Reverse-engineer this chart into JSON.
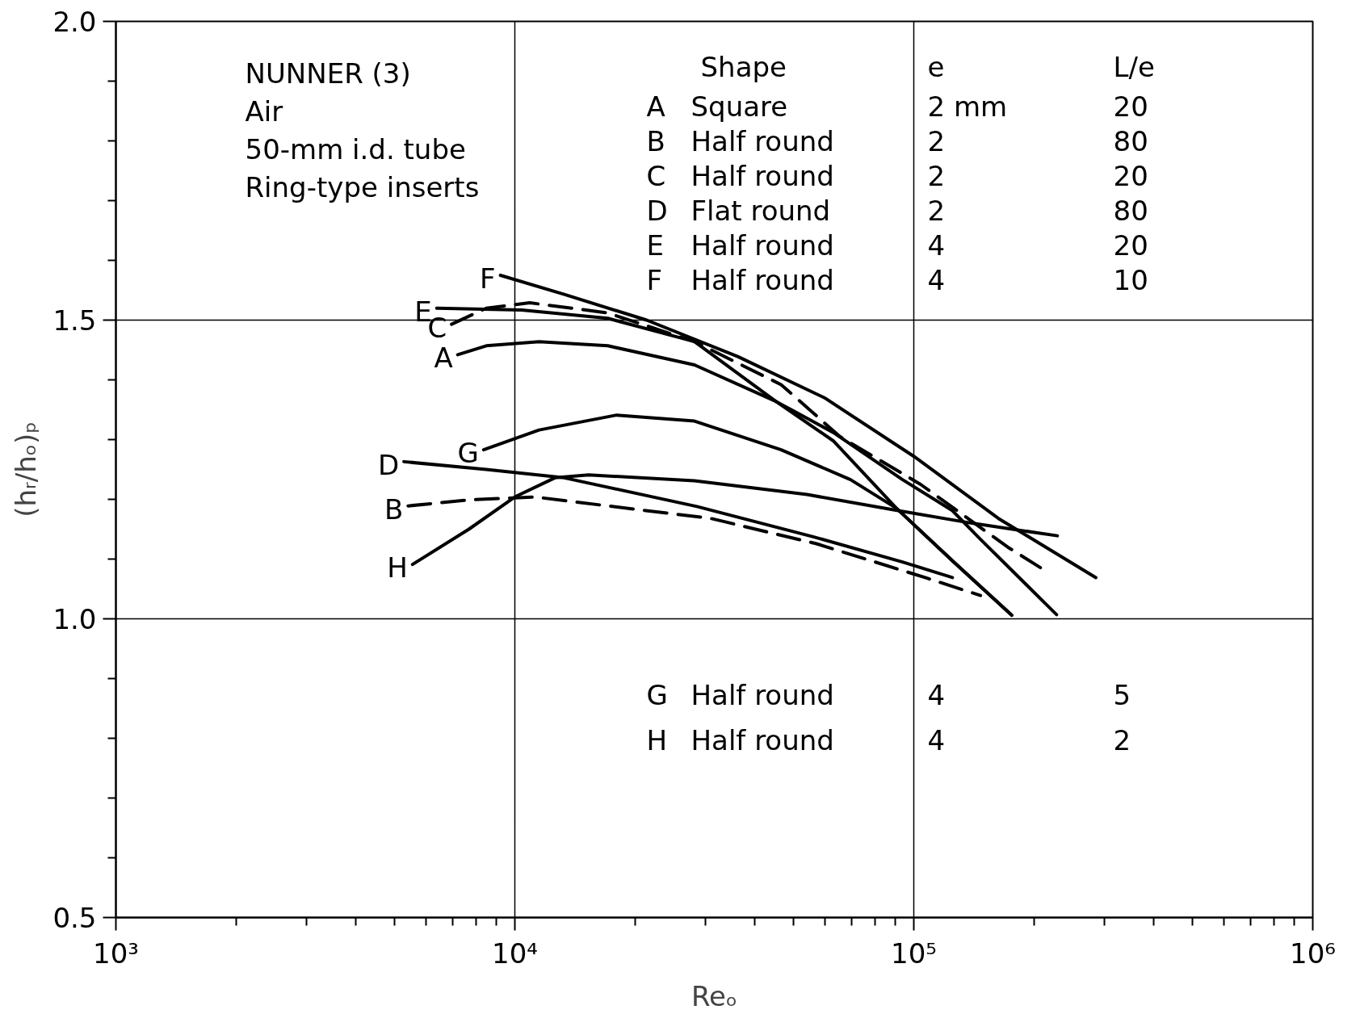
{
  "chart_data": {
    "type": "line",
    "xlabel": "Reₒ",
    "ylabel": "(hᵣ/hₒ)ₚ",
    "log": "x",
    "grid": true,
    "marker": "none",
    "xlim": [
      1000,
      1000000
    ],
    "ylim": [
      0.5,
      2.0
    ],
    "xticks": [
      {
        "value": 1000,
        "label": "10³"
      },
      {
        "value": 2000,
        "label": null
      },
      {
        "value": 3000,
        "label": null
      },
      {
        "value": 4000,
        "label": null
      },
      {
        "value": 5000,
        "label": null
      },
      {
        "value": 6000,
        "label": null
      },
      {
        "value": 7000,
        "label": null
      },
      {
        "value": 8000,
        "label": null
      },
      {
        "value": 9000,
        "label": null
      },
      {
        "value": 10000,
        "label": "10⁴"
      },
      {
        "value": 20000,
        "label": null
      },
      {
        "value": 30000,
        "label": null
      },
      {
        "value": 40000,
        "label": null
      },
      {
        "value": 50000,
        "label": null
      },
      {
        "value": 60000,
        "label": null
      },
      {
        "value": 70000,
        "label": null
      },
      {
        "value": 80000,
        "label": null
      },
      {
        "value": 90000,
        "label": null
      },
      {
        "value": 100000,
        "label": "10⁵"
      },
      {
        "value": 200000,
        "label": null
      },
      {
        "value": 300000,
        "label": null
      },
      {
        "value": 400000,
        "label": null
      },
      {
        "value": 500000,
        "label": null
      },
      {
        "value": 600000,
        "label": null
      },
      {
        "value": 700000,
        "label": null
      },
      {
        "value": 800000,
        "label": null
      },
      {
        "value": 900000,
        "label": null
      },
      {
        "value": 1000000,
        "label": "10⁶"
      }
    ],
    "yticks": [
      {
        "value": 0.5,
        "label": "0.5"
      },
      {
        "value": 0.6,
        "label": null
      },
      {
        "value": 0.7,
        "label": null
      },
      {
        "value": 0.8,
        "label": null
      },
      {
        "value": 0.9,
        "label": null
      },
      {
        "value": 1.0,
        "label": "1.0"
      },
      {
        "value": 1.1,
        "label": null
      },
      {
        "value": 1.2,
        "label": null
      },
      {
        "value": 1.3,
        "label": null
      },
      {
        "value": 1.4,
        "label": null
      },
      {
        "value": 1.5,
        "label": "1.5"
      },
      {
        "value": 1.6,
        "label": null
      },
      {
        "value": 1.7,
        "label": null
      },
      {
        "value": 1.8,
        "label": null
      },
      {
        "value": 1.9,
        "label": null
      },
      {
        "value": 2.0,
        "label": "2.0"
      }
    ],
    "annotations": [
      "NUNNER (3)\nAir\n50-mm i.d. tube\nRing-type inserts",
      "\tShape\te\tL/e",
      "A\tSquare\t2 mm\t20",
      "B\tHalf round\t2\t80",
      "C\tHalf round\t2\t20",
      "D\tFlat round\t2\t80",
      "E\tHalf round\t4\t20",
      "F\tHalf round\t4\t10",
      "G\tHalf round\t4\t5",
      "H\tHalf round\t4\t2"
    ],
    "series": [
      {
        "name": "A",
        "color": "#000000",
        "line_style": "solid",
        "x": [
          7190,
          8480,
          11500,
          17100,
          28200,
          45100,
          62800,
          93700,
          125000,
          147000,
          228000
        ],
        "values": [
          1.442,
          1.457,
          1.464,
          1.457,
          1.425,
          1.364,
          1.312,
          1.233,
          1.181,
          1.133,
          1.007
        ]
      },
      {
        "name": "B",
        "color": "#000000",
        "line_style": "dashed",
        "x": [
          5400,
          7670,
          11200,
          17100,
          31000,
          56800,
          108000,
          147000
        ],
        "values": [
          1.189,
          1.199,
          1.204,
          1.189,
          1.168,
          1.126,
          1.068,
          1.039
        ]
      },
      {
        "name": "C",
        "color": "#000000",
        "line_style": "dashed",
        "x": [
          6940,
          8480,
          10900,
          17100,
          28200,
          46500,
          65300,
          104000,
          172000,
          213000
        ],
        "values": [
          1.493,
          1.52,
          1.529,
          1.512,
          1.464,
          1.392,
          1.305,
          1.225,
          1.12,
          1.081
        ]
      },
      {
        "name": "D",
        "color": "#000000",
        "line_style": "solid",
        "x": [
          5270,
          8480,
          13300,
          28600,
          56200,
          93700,
          125000
        ],
        "values": [
          1.263,
          1.25,
          1.236,
          1.188,
          1.137,
          1.095,
          1.069
        ]
      },
      {
        "name": "E",
        "color": "#000000",
        "line_style": "solid",
        "x": [
          6370,
          10400,
          17100,
          28200,
          45100,
          62800,
          90500,
          126000,
          176000
        ],
        "values": [
          1.52,
          1.517,
          1.503,
          1.464,
          1.364,
          1.298,
          1.185,
          1.095,
          1.006
        ]
      },
      {
        "name": "F",
        "color": "#000000",
        "line_style": "solid",
        "x": [
          9200,
          13300,
          21400,
          36200,
          59700,
          100000,
          163000,
          286000
        ],
        "values": [
          1.575,
          1.543,
          1.5,
          1.439,
          1.37,
          1.272,
          1.168,
          1.069
        ]
      },
      {
        "name": "G",
        "color": "#000000",
        "line_style": "solid",
        "x": [
          8350,
          11500,
          18000,
          28200,
          46500,
          69400,
          90500,
          126000,
          176000
        ],
        "values": [
          1.283,
          1.316,
          1.341,
          1.331,
          1.283,
          1.233,
          1.185,
          1.095,
          1.006
        ]
      },
      {
        "name": "H",
        "color": "#000000",
        "line_style": "solid",
        "x": [
          5540,
          7670,
          10000,
          12600,
          15300,
          28200,
          54000,
          89600,
          140000,
          229000
        ],
        "values": [
          1.091,
          1.15,
          1.204,
          1.236,
          1.241,
          1.231,
          1.208,
          1.182,
          1.16,
          1.139
        ]
      }
    ]
  }
}
